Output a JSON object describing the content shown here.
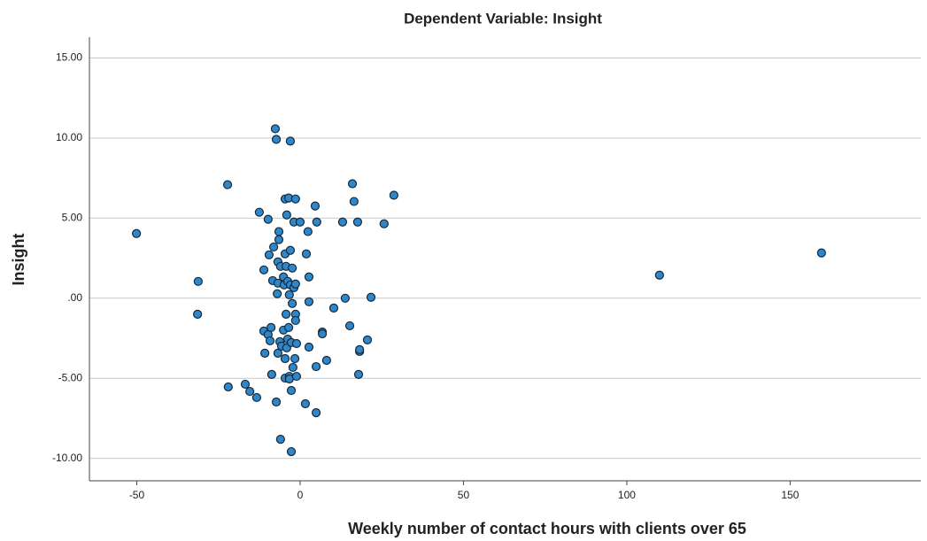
{
  "chart_data": {
    "type": "scatter",
    "title": "Dependent Variable: Insight",
    "x_label": "Weekly number of contact hours with clients over 65",
    "y_label": "Insight",
    "color": "#2f86c8",
    "edge_color": "#14293b",
    "grid": true,
    "xlim": [
      -64.5,
      190
    ],
    "xticks": [
      -50,
      0,
      50,
      100,
      150
    ],
    "ylim": [
      -11.4,
      16.3
    ],
    "yticks": [
      {
        "value": -10,
        "label": "-10.00"
      },
      {
        "value": -5,
        "label": "-5.00"
      },
      {
        "value": 0,
        "label": ".00"
      },
      {
        "value": 5,
        "label": "5.00"
      },
      {
        "value": 10,
        "label": "10.00"
      },
      {
        "value": 15,
        "label": "15.00"
      }
    ],
    "x": [
      -50.1,
      -31.2,
      -31.4,
      -22.2,
      -22,
      -16.8,
      -15.4,
      -13.3,
      -12.5,
      -11.1,
      -10.8,
      -11.1,
      -9.8,
      -9.8,
      -9.2,
      -8.9,
      -9.5,
      -8.7,
      -8.4,
      -8.1,
      -7.6,
      -7.3,
      -7.3,
      -7.0,
      -6.8,
      -6.8,
      -6.8,
      -6.5,
      -6.5,
      -6.2,
      -6.0,
      -6.0,
      -5.7,
      -5.1,
      -5.1,
      -4.9,
      -4.6,
      -4.6,
      -4.6,
      -4.6,
      -4.3,
      -4.3,
      -4.1,
      -4.1,
      -3.8,
      -3.8,
      -3.5,
      -3.5,
      -3.3,
      -3.3,
      -3.3,
      -3.0,
      -3.0,
      -3.0,
      -2.7,
      -2.7,
      -2.7,
      -2.4,
      -2.4,
      -2.2,
      -1.9,
      -1.9,
      -1.6,
      -1.4,
      -1.4,
      -1.4,
      -1.4,
      -1.1,
      -1.1,
      0,
      1.6,
      1.9,
      2.4,
      2.7,
      2.7,
      2.7,
      4.6,
      4.9,
      4.9,
      5.1,
      6.8,
      6.8,
      8.1,
      10.3,
      13.0,
      13.8,
      15.2,
      16.0,
      16.5,
      17.6,
      17.9,
      18.2,
      18.2,
      20.6,
      21.7,
      25.7,
      28.7,
      110,
      159.6
    ],
    "values": [
      4.04,
      1.05,
      -1.0,
      7.09,
      -5.54,
      -5.37,
      -5.82,
      -6.2,
      5.37,
      1.77,
      -3.43,
      -2.05,
      4.93,
      -2.27,
      -2.66,
      -1.83,
      2.71,
      -4.76,
      1.1,
      3.2,
      10.58,
      9.92,
      -6.48,
      0.28,
      -3.43,
      2.27,
      0.94,
      3.66,
      4.16,
      -2.71,
      1.99,
      -8.81,
      -2.99,
      -1.99,
      1.33,
      0.83,
      2.77,
      -4.99,
      6.2,
      -3.77,
      -1.0,
      1.99,
      5.2,
      -3.1,
      -2.55,
      1.05,
      6.26,
      -1.83,
      -4.88,
      0.22,
      -5.04,
      9.81,
      2.99,
      0.83,
      -9.58,
      -5.76,
      -2.77,
      1.88,
      -0.33,
      -4.32,
      4.76,
      0.66,
      -3.77,
      6.2,
      0.89,
      -1.0,
      -1.39,
      -4.88,
      -2.83,
      4.76,
      -6.59,
      2.77,
      4.16,
      -0.22,
      1.33,
      -3.05,
      5.76,
      -4.27,
      -7.15,
      4.76,
      -2.11,
      -2.22,
      -3.88,
      -0.61,
      4.76,
      0,
      -1.72,
      7.15,
      6.04,
      4.76,
      -4.76,
      -3.32,
      -3.21,
      -2.6,
      0.06,
      4.65,
      6.43,
      1.44,
      2.83
    ]
  }
}
